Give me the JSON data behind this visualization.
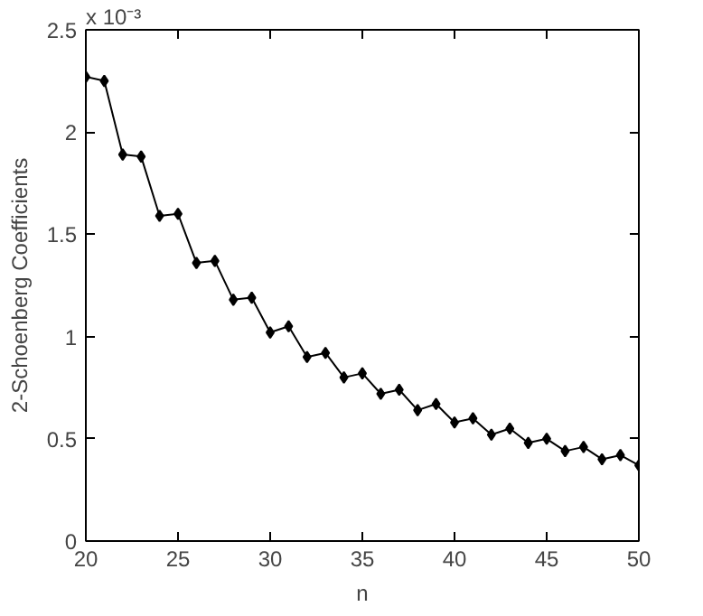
{
  "chart_data": {
    "type": "line",
    "xlabel": "n",
    "ylabel": "2-Schoenberg Coefficients",
    "annotations": [
      "x 10⁻³"
    ],
    "x": [
      20,
      21,
      22,
      23,
      24,
      25,
      26,
      27,
      28,
      29,
      30,
      31,
      32,
      33,
      34,
      35,
      36,
      37,
      38,
      39,
      40,
      41,
      42,
      43,
      44,
      45,
      46,
      47,
      48,
      49,
      50
    ],
    "series": [
      {
        "color": "#000000",
        "values": [
          2.27,
          2.25,
          1.89,
          1.88,
          1.59,
          1.6,
          1.36,
          1.37,
          1.18,
          1.19,
          1.02,
          1.05,
          0.9,
          0.92,
          0.8,
          0.82,
          0.72,
          0.74,
          0.64,
          0.67,
          0.58,
          0.6,
          0.52,
          0.55,
          0.48,
          0.5,
          0.44,
          0.46,
          0.4,
          0.42,
          0.37
        ]
      }
    ],
    "xlim": [
      20,
      50
    ],
    "ylim": [
      0,
      2.5
    ],
    "xticks": [
      20,
      25,
      30,
      35,
      40,
      45,
      50
    ],
    "yticks": [
      0,
      0.5,
      1,
      1.5,
      2,
      2.5
    ],
    "grid": false,
    "marker": "diamond",
    "line_style": "solid"
  }
}
